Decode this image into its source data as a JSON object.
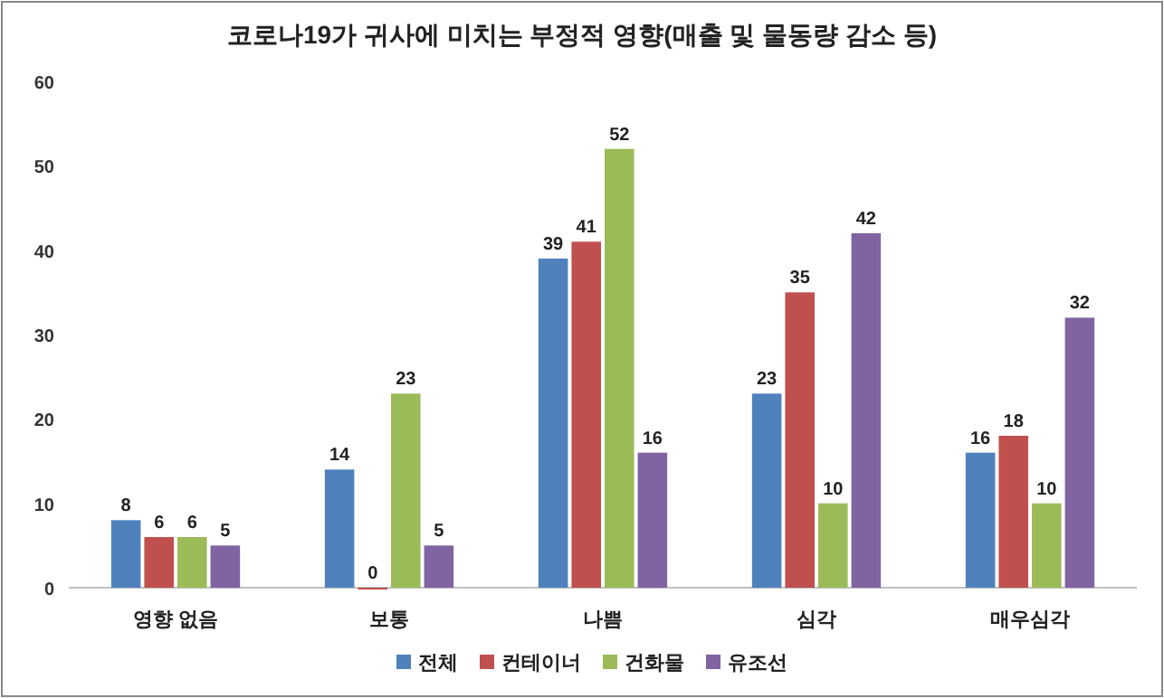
{
  "chart_data": {
    "type": "bar",
    "title": "코로나19가 귀사에 미치는 부정적 영향(매출 및 물동량 감소 등)",
    "categories": [
      "영향 없음",
      "보통",
      "나쁨",
      "심각",
      "매우심각"
    ],
    "series": [
      {
        "name": "전체",
        "color": "#4f81bd",
        "values": [
          8,
          14,
          39,
          23,
          16
        ]
      },
      {
        "name": "컨테이너",
        "color": "#c0504d",
        "values": [
          6,
          0,
          41,
          35,
          18
        ]
      },
      {
        "name": "건화물",
        "color": "#9bbb59",
        "values": [
          6,
          23,
          52,
          10,
          10
        ]
      },
      {
        "name": "유조선",
        "color": "#8064a2",
        "values": [
          5,
          5,
          16,
          42,
          32
        ]
      }
    ],
    "ylim": [
      0,
      60
    ],
    "yticks": [
      0,
      10,
      20,
      30,
      40,
      50,
      60
    ],
    "grid": false,
    "legend": "bottom",
    "data_labels": true
  }
}
